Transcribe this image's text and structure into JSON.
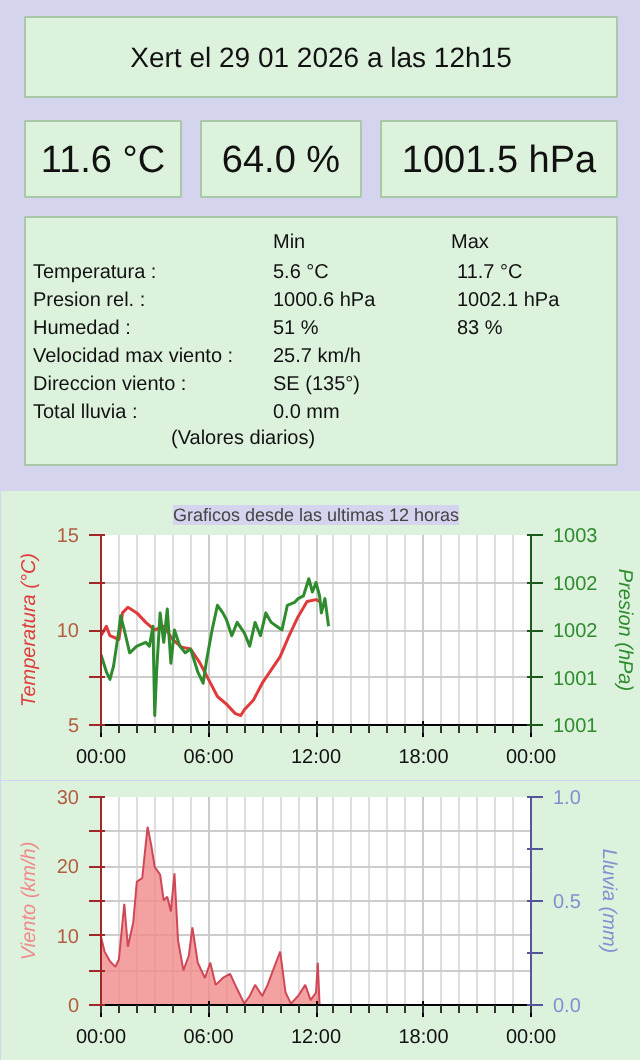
{
  "chart_data": [
    {
      "type": "other",
      "title": "Xert el 29 01 2026 a las 12h15",
      "annotations": [
        "11.6 °C",
        "64.0 %",
        "1001.5 hPa",
        "Min",
        "Max",
        "Temperatura :",
        "5.6 °C",
        "11.7 °C",
        "Presion rel. :",
        "1000.6 hPa",
        "1002.1 hPa",
        "Humedad :",
        "51 %",
        "83 %",
        "Velocidad max viento :",
        "25.7 km/h",
        "Direccion viento :",
        "SE (135°)",
        "Total lluvia :",
        "0.0 mm",
        "(Valores diarios)"
      ]
    },
    {
      "type": "line",
      "title": "Graficos desde las ultimas 12 horas",
      "ylabel": "Temperatura (°C)",
      "y2label": "Presion (hPa)",
      "xlim": [
        0,
        24
      ],
      "xticks": [
        {
          "value": 0,
          "label": "00:00"
        },
        {
          "value": 6,
          "label": "06:00"
        },
        {
          "value": 12,
          "label": "12:00"
        },
        {
          "value": 18,
          "label": "18:00"
        },
        {
          "value": 24,
          "label": "00:00"
        }
      ],
      "ylim": [
        5,
        15
      ],
      "yticks": [
        5,
        {
          "value": 7.5,
          "label": null
        },
        10,
        {
          "value": 12.5,
          "label": null
        },
        15
      ],
      "y2lim": [
        1001,
        1003
      ],
      "y2ticks": [
        {
          "value": 1001,
          "label": "1001"
        },
        {
          "value": 1001.5,
          "label": "1001"
        },
        {
          "value": 1002,
          "label": "1002"
        },
        {
          "value": 1002.5,
          "label": "1002"
        },
        {
          "value": 1003,
          "label": "1003"
        }
      ],
      "grid": true,
      "marker": "none",
      "line_style": "solid",
      "series": [
        {
          "color": "#e03a3a",
          "x": [
            0,
            0.3,
            0.5,
            1,
            1.2,
            1.5,
            2,
            2.5,
            3,
            3.5,
            4,
            4.5,
            5,
            5.5,
            6,
            6.5,
            7,
            7.5,
            7.8,
            8,
            8.5,
            9,
            9.5,
            10,
            10.5,
            11,
            11.5,
            12,
            12.2
          ],
          "values": [
            9.7,
            10.2,
            9.7,
            9.5,
            10.9,
            11.2,
            10.9,
            10.4,
            10.0,
            10.2,
            9.5,
            9.1,
            9.0,
            8.3,
            7.4,
            6.5,
            6.1,
            5.6,
            5.5,
            5.8,
            6.3,
            7.2,
            7.9,
            8.6,
            9.7,
            10.7,
            11.5,
            11.6,
            11.5
          ]
        },
        {
          "color": "#2e8b2e",
          "axis": "y2",
          "x": [
            0,
            0.3,
            0.5,
            0.7,
            1,
            1.1,
            1.3,
            1.6,
            2,
            2.5,
            2.7,
            2.9,
            3.0,
            3.1,
            3.3,
            3.5,
            3.7,
            3.9,
            4.1,
            4.4,
            4.7,
            5,
            5.4,
            5.7,
            5.9,
            6.2,
            6.5,
            6.8,
            7,
            7.3,
            7.6,
            8,
            8.3,
            8.6,
            8.9,
            9.2,
            9.5,
            9.8,
            10.1,
            10.4,
            10.8,
            11,
            11.3,
            11.6,
            11.8,
            12,
            12.2,
            12.3,
            12.5,
            12.7
          ],
          "values": [
            1001.74,
            1001.56,
            1001.48,
            1001.62,
            1002.0,
            1002.15,
            1002.0,
            1001.76,
            1001.83,
            1001.87,
            1001.83,
            1002.04,
            1001.1,
            1001.55,
            1002.18,
            1001.87,
            1002.22,
            1001.65,
            1002.0,
            1001.83,
            1001.76,
            1001.8,
            1001.56,
            1001.44,
            1001.69,
            1002.0,
            1002.26,
            1002.18,
            1002.11,
            1001.94,
            1002.08,
            1001.97,
            1001.83,
            1002.08,
            1001.94,
            1002.18,
            1002.08,
            1002.04,
            1002.0,
            1002.26,
            1002.29,
            1002.33,
            1002.36,
            1002.54,
            1002.4,
            1002.5,
            1002.36,
            1002.18,
            1002.33,
            1002.04
          ]
        }
      ]
    },
    {
      "type": "area",
      "ylabel": "Viento (km/h)",
      "y2label": "Lluvia (mm)",
      "xlim": [
        0,
        24
      ],
      "xticks": [
        {
          "value": 0,
          "label": "00:00"
        },
        {
          "value": 6,
          "label": "06:00"
        },
        {
          "value": 12,
          "label": "12:00"
        },
        {
          "value": 18,
          "label": "18:00"
        },
        {
          "value": 24,
          "label": "00:00"
        }
      ],
      "ylim": [
        0,
        30
      ],
      "yticks": [
        0,
        {
          "value": 5,
          "label": null
        },
        10,
        {
          "value": 15,
          "label": null
        },
        20,
        {
          "value": 25,
          "label": null
        },
        30
      ],
      "y2lim": [
        0,
        1
      ],
      "y2ticks": [
        {
          "value": 0,
          "label": "0.0"
        },
        {
          "value": 0.25,
          "label": null
        },
        {
          "value": 0.5,
          "label": "0.5"
        },
        {
          "value": 0.75,
          "label": null
        },
        {
          "value": 1,
          "label": "1.0"
        }
      ],
      "grid": true,
      "series": [
        {
          "color": "#f08a8a",
          "x": [
            0,
            0.2,
            0.5,
            0.8,
            1,
            1.3,
            1.5,
            1.8,
            2,
            2.3,
            2.6,
            2.8,
            3,
            3.3,
            3.5,
            3.7,
            3.9,
            4.1,
            4.3,
            4.6,
            4.9,
            5.1,
            5.4,
            5.8,
            6.1,
            6.4,
            6.8,
            7.2,
            7.6,
            8,
            8.3,
            8.6,
            9,
            9.3,
            9.6,
            10,
            10.3,
            10.6,
            11,
            11.4,
            11.7,
            12,
            12.1,
            12.2
          ],
          "values": [
            9.8,
            7.7,
            6.3,
            5.5,
            6.6,
            14.6,
            8.4,
            11.9,
            17.8,
            18.3,
            25.7,
            23.1,
            19.9,
            18.8,
            15.1,
            15.6,
            13.5,
            19.0,
            9.3,
            5.0,
            7.1,
            11.2,
            6.1,
            3.9,
            6.1,
            2.9,
            3.9,
            4.5,
            2.3,
            0.2,
            1.3,
            2.9,
            1.3,
            2.9,
            5.0,
            7.7,
            1.8,
            0.2,
            1.3,
            2.9,
            0.7,
            1.8,
            6.1,
            0
          ]
        }
      ]
    }
  ]
}
